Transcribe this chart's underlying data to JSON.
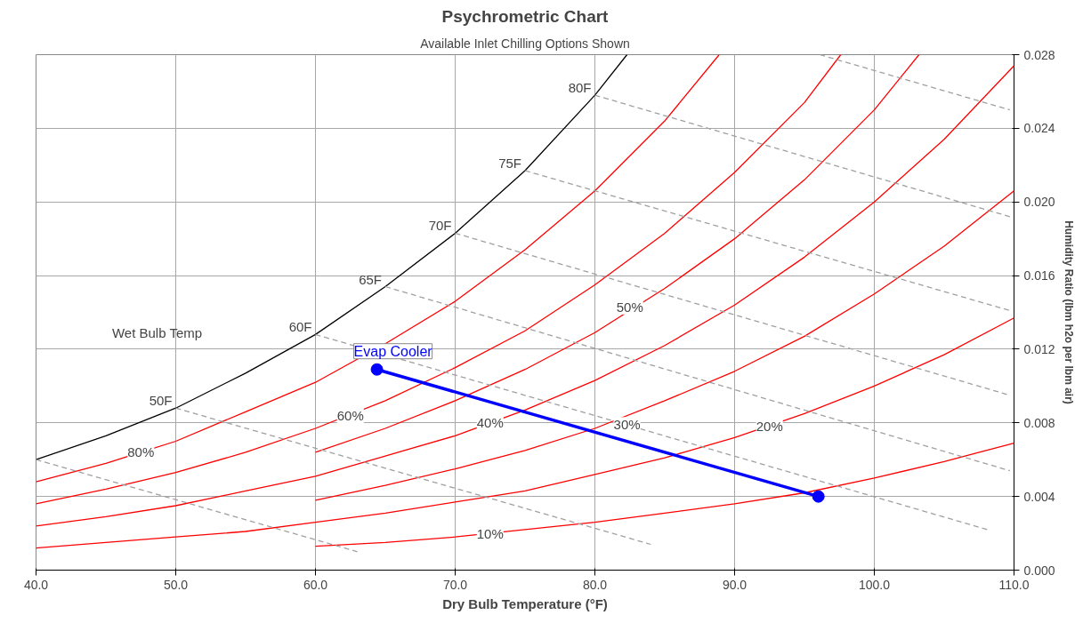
{
  "chart_data": {
    "type": "line",
    "title": "Psychrometric Chart",
    "subtitle": "Available Inlet Chilling Options Shown",
    "xlabel": "Dry Bulb Temperature (°F)",
    "ylabel": "Humidity Ratio (lbm h2o per lbm air)",
    "xlim": [
      40,
      110
    ],
    "ylim": [
      0,
      0.028
    ],
    "xticks": [
      {
        "value": 40,
        "label": "40.0"
      },
      {
        "value": 50,
        "label": "50.0"
      },
      {
        "value": 60,
        "label": "60.0"
      },
      {
        "value": 70,
        "label": "70.0"
      },
      {
        "value": 80,
        "label": "80.0"
      },
      {
        "value": 90,
        "label": "90.0"
      },
      {
        "value": 100,
        "label": "100.0"
      },
      {
        "value": 110,
        "label": "110.0"
      }
    ],
    "yticks": [
      {
        "value": 0,
        "label": "0.000"
      },
      {
        "value": 0.004,
        "label": "0.004"
      },
      {
        "value": 0.008,
        "label": "0.008"
      },
      {
        "value": 0.012,
        "label": "0.012"
      },
      {
        "value": 0.016,
        "label": "0.016"
      },
      {
        "value": 0.02,
        "label": "0.020"
      },
      {
        "value": 0.024,
        "label": "0.024"
      },
      {
        "value": 0.028,
        "label": "0.028"
      }
    ],
    "grid": true,
    "series": [
      {
        "color": "#000000",
        "line_style": "solid",
        "x": [
          40,
          45,
          50,
          55,
          60,
          65,
          70,
          75,
          80,
          82.3
        ],
        "values": [
          0.006,
          0.0073,
          0.0088,
          0.0107,
          0.0128,
          0.0154,
          0.0183,
          0.0217,
          0.0258,
          0.028
        ]
      },
      {
        "color": "#ff0000",
        "line_style": "solid",
        "x": [
          40,
          45,
          50,
          55,
          60,
          65,
          70,
          75,
          80,
          85,
          88.9
        ],
        "values": [
          0.0048,
          0.0058,
          0.007,
          0.0086,
          0.0102,
          0.0123,
          0.0146,
          0.0174,
          0.0206,
          0.0244,
          0.028
        ]
      },
      {
        "color": "#ff0000",
        "line_style": "solid",
        "x": [
          40,
          45,
          50,
          55,
          60,
          65,
          70,
          75,
          80,
          85,
          90,
          95,
          97.6
        ],
        "values": [
          0.0036,
          0.0044,
          0.0053,
          0.0064,
          0.0077,
          0.0092,
          0.011,
          0.013,
          0.0155,
          0.0183,
          0.0216,
          0.0254,
          0.028
        ]
      },
      {
        "color": "#ff0000",
        "line_style": "solid",
        "x": [
          60,
          65,
          70,
          75,
          80,
          85,
          90,
          95,
          100,
          103.2
        ],
        "values": [
          0.0064,
          0.0077,
          0.0092,
          0.0109,
          0.0129,
          0.0153,
          0.018,
          0.0212,
          0.025,
          0.028
        ]
      },
      {
        "color": "#ff0000",
        "line_style": "solid",
        "x": [
          40,
          45,
          50,
          55,
          60,
          65,
          70,
          75,
          80,
          85,
          90,
          95,
          100,
          105,
          110
        ],
        "values": [
          0.0024,
          0.0029,
          0.0035,
          0.0043,
          0.0051,
          0.0062,
          0.0073,
          0.0087,
          0.0103,
          0.0122,
          0.0144,
          0.017,
          0.02,
          0.0234,
          0.0274
        ]
      },
      {
        "color": "#ff0000",
        "line_style": "solid",
        "x": [
          60,
          65,
          70,
          75,
          80,
          85,
          90,
          95,
          100,
          105,
          110
        ],
        "values": [
          0.0038,
          0.0046,
          0.0055,
          0.0065,
          0.0077,
          0.0092,
          0.0108,
          0.0127,
          0.015,
          0.0176,
          0.0206
        ]
      },
      {
        "color": "#ff0000",
        "line_style": "solid",
        "x": [
          40,
          45,
          50,
          55,
          60,
          65,
          70,
          75,
          80,
          85,
          90,
          95,
          100,
          105,
          110
        ],
        "values": [
          0.0012,
          0.0015,
          0.0018,
          0.0021,
          0.0026,
          0.0031,
          0.0037,
          0.0043,
          0.0052,
          0.0061,
          0.0072,
          0.0085,
          0.01,
          0.0117,
          0.0137
        ]
      },
      {
        "color": "#ff0000",
        "line_style": "solid",
        "x": [
          60,
          65,
          70,
          75,
          80,
          85,
          90,
          95,
          100,
          105,
          110
        ],
        "values": [
          0.0013,
          0.0015,
          0.0018,
          0.0022,
          0.0026,
          0.0031,
          0.0036,
          0.0042,
          0.005,
          0.0059,
          0.0069
        ]
      },
      {
        "color": "#a0a0a0",
        "line_style": "dashed",
        "x": [
          40,
          63
        ],
        "values": [
          0.006,
          0.001
        ]
      },
      {
        "color": "#a0a0a0",
        "line_style": "dashed",
        "x": [
          50,
          84
        ],
        "values": [
          0.0088,
          0.0014
        ]
      },
      {
        "color": "#a0a0a0",
        "line_style": "dashed",
        "x": [
          60,
          108.1
        ],
        "values": [
          0.0128,
          0.0022
        ]
      },
      {
        "color": "#a0a0a0",
        "line_style": "dashed",
        "x": [
          65,
          109.7
        ],
        "values": [
          0.0154,
          0.0054
        ]
      },
      {
        "color": "#a0a0a0",
        "line_style": "dashed",
        "x": [
          70,
          109.7
        ],
        "values": [
          0.0183,
          0.0095
        ]
      },
      {
        "color": "#a0a0a0",
        "line_style": "dashed",
        "x": [
          75,
          109.7
        ],
        "values": [
          0.0217,
          0.0141
        ]
      },
      {
        "color": "#a0a0a0",
        "line_style": "dashed",
        "x": [
          80,
          109.7
        ],
        "values": [
          0.0258,
          0.0192
        ]
      },
      {
        "color": "#a0a0a0",
        "line_style": "dashed",
        "x": [
          96.1,
          109.7
        ],
        "values": [
          0.028,
          0.025
        ]
      },
      {
        "name": "Evap Cooler",
        "color": "#0000ff",
        "line_style": "solid",
        "marker": "circle",
        "x": [
          64.4,
          96.0
        ],
        "values": [
          0.0109,
          0.004
        ]
      }
    ],
    "annotations": [
      "Wet Bulb Temp",
      {
        "text": "50F",
        "x": 50,
        "y": 0.0088
      },
      {
        "text": "60F",
        "x": 60,
        "y": 0.0128
      },
      {
        "text": "65F",
        "x": 65,
        "y": 0.0154
      },
      {
        "text": "70F",
        "x": 70,
        "y": 0.0183
      },
      {
        "text": "75F",
        "x": 75,
        "y": 0.0217
      },
      {
        "text": "80F",
        "x": 80,
        "y": 0.0258
      },
      {
        "text": "80%",
        "x": 47.5,
        "y": 0.0064
      },
      {
        "text": "60%",
        "x": 62.5,
        "y": 0.0084
      },
      {
        "text": "40%",
        "x": 72.5,
        "y": 0.008
      },
      {
        "text": "50%",
        "x": 82.5,
        "y": 0.0143
      },
      {
        "text": "30%",
        "x": 82.3,
        "y": 0.0079
      },
      {
        "text": "20%",
        "x": 92.5,
        "y": 0.0078
      },
      {
        "text": "10%",
        "x": 72.5,
        "y": 0.002
      }
    ]
  }
}
